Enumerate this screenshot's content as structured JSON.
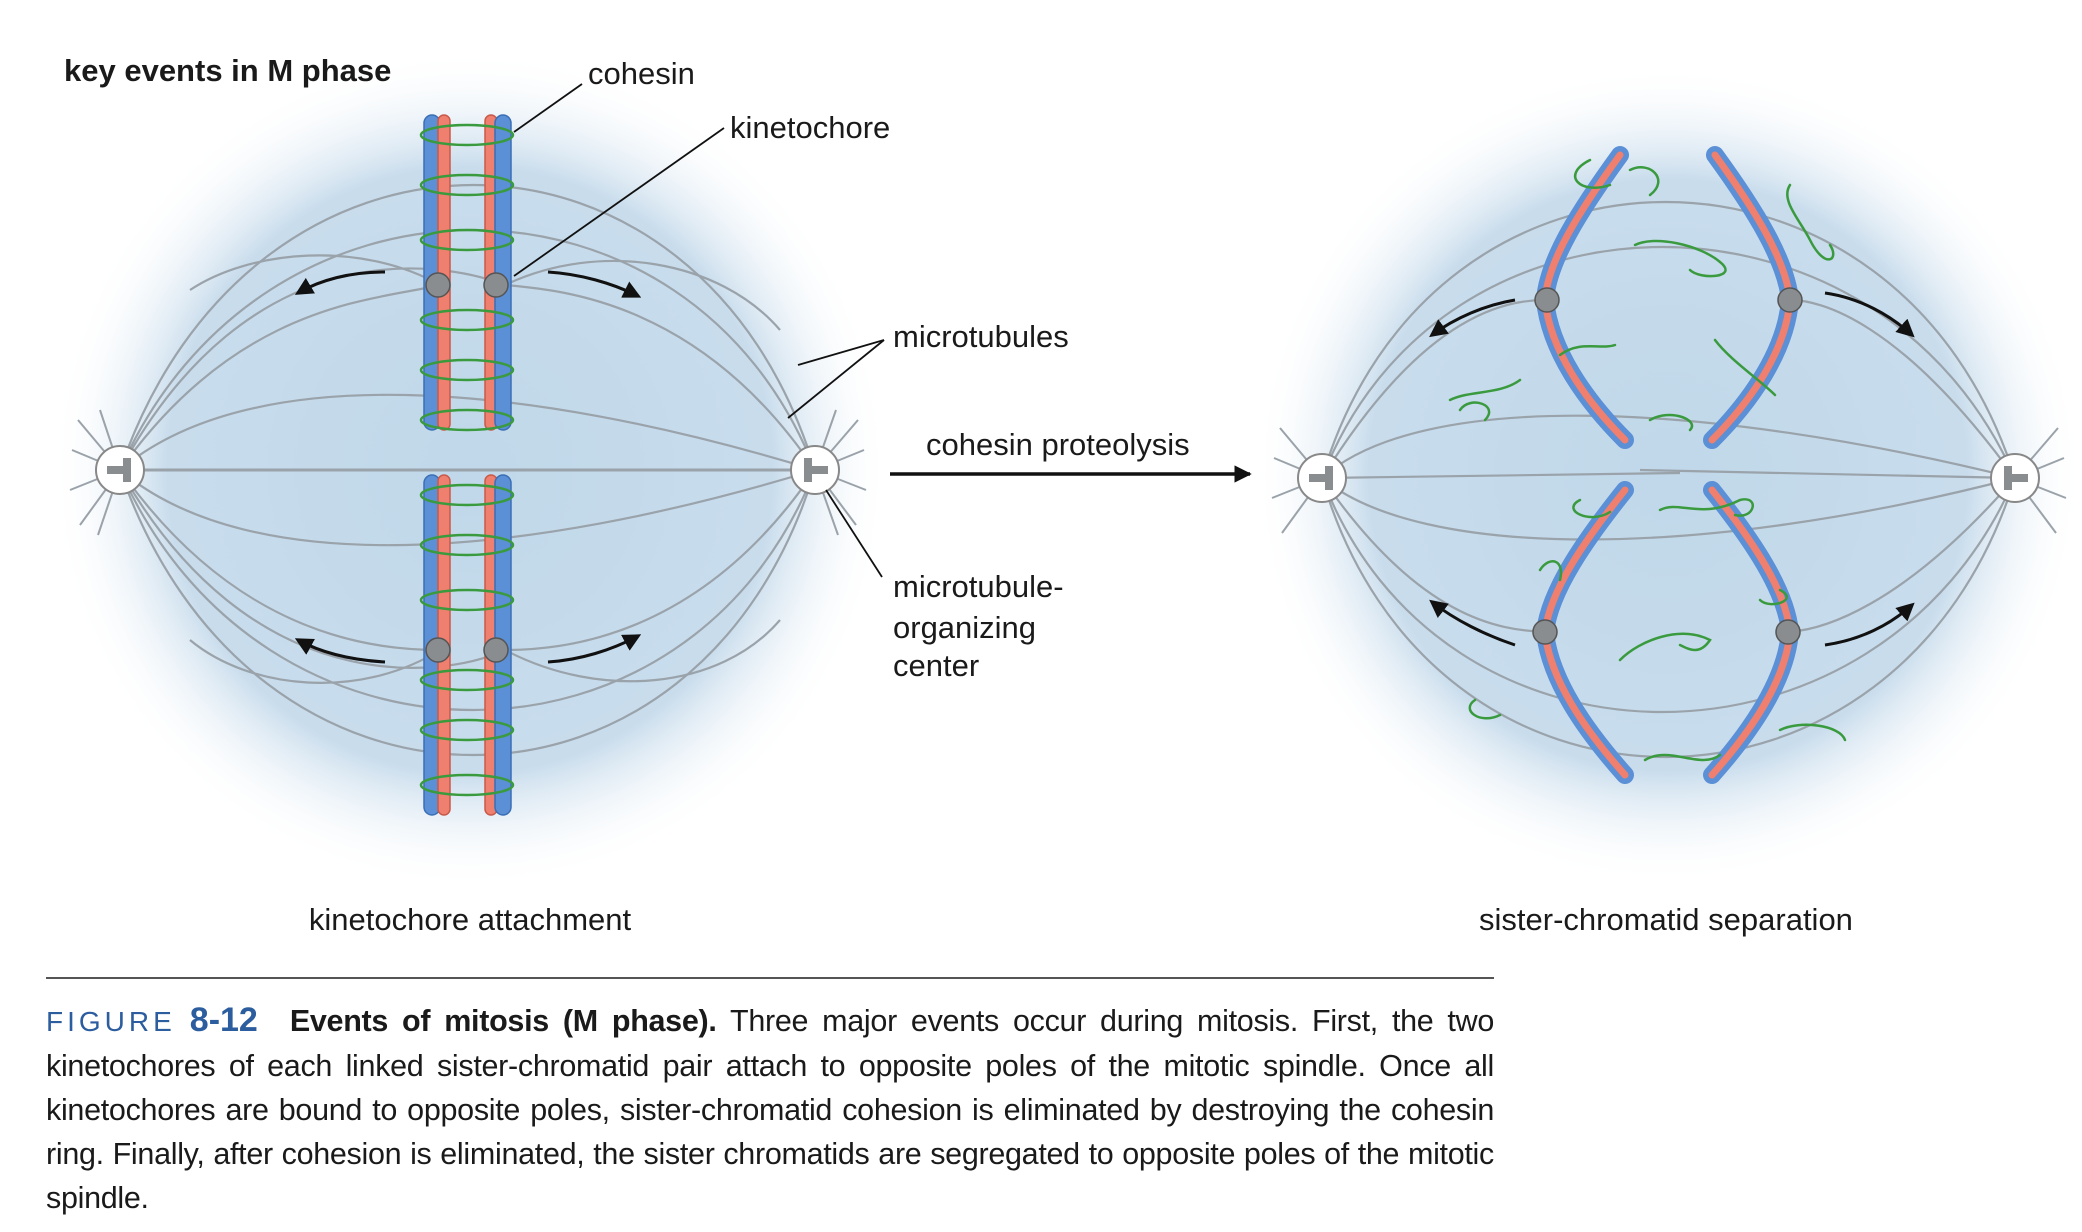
{
  "heading": "key events in M phase",
  "labels": {
    "cohesin": "cohesin",
    "kinetochore": "kinetochore",
    "microtubules": "microtubules",
    "cohesin_proteolysis": "cohesin proteolysis",
    "mtoc_line1": "microtubule-",
    "mtoc_line2": "organizing",
    "mtoc_line3": "center"
  },
  "panels": {
    "left": "kinetochore attachment",
    "right": "sister-chromatid separation"
  },
  "caption": {
    "fig_word": "FIGURE",
    "fig_num": "8-12",
    "title": "Events of mitosis (M phase).",
    "body": "Three major events occur during mitosis. First, the two kinetochores of each linked sister-chromatid pair attach to opposite poles of the mitotic spindle. Once all kinetochores are bound to opposite poles, sister-chromatid cohesion is eliminated by destroying the cohesin ring. Finally, after cohesion is eliminated, the sister chromatids are segregated to opposite poles of the mitotic spindle."
  },
  "colors": {
    "chromatid_blue": "#5b8fd6",
    "chromatid_red": "#ef7f6e",
    "cohesin_green": "#3a9a3e",
    "spindle_glow": "#c5dcec",
    "microtubule": "#9aa2aa",
    "kinetochore": "#8a8d90"
  }
}
